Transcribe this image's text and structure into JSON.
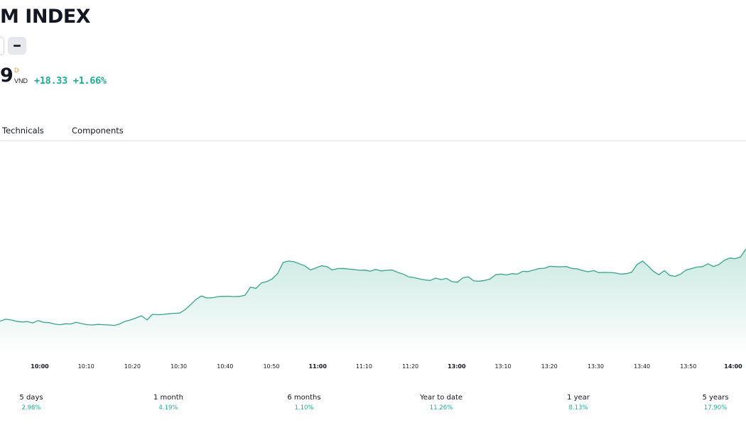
{
  "header": {
    "title": "M INDEX",
    "price": "9",
    "price_flag": "D",
    "currency": "VND",
    "change": "+18.33",
    "change_percent": "+1.66%"
  },
  "tabs": [
    {
      "label": "Technicals"
    },
    {
      "label": "Components"
    }
  ],
  "colors": {
    "accent": "#22ab94",
    "line": "#3aa28e",
    "fill_top": "#c9e9e1",
    "flag": "#f59b0c"
  },
  "chart_data": {
    "type": "area",
    "x_ticks": [
      "10:00",
      "10:10",
      "10:20",
      "10:30",
      "10:40",
      "10:50",
      "11:00",
      "11:10",
      "11:20",
      "13:00",
      "13:10",
      "13:20",
      "13:30",
      "13:40",
      "13:50",
      "14:00"
    ],
    "bold_ticks": [
      "10:00",
      "11:00",
      "13:00",
      "14:00"
    ],
    "y_axis_visible": false,
    "grid": false,
    "note": "y values in normalized index units (y-axis not visible)",
    "values": [
      51.0,
      52.5,
      52.0,
      51.0,
      50.5,
      50.8,
      49.8,
      51.5,
      50.2,
      50.0,
      49.0,
      48.5,
      49.2,
      49.0,
      50.2,
      49.3,
      48.5,
      48.3,
      48.7,
      48.5,
      48.3,
      48.0,
      49.0,
      51.0,
      52.0,
      53.5,
      55.0,
      52.0,
      56.0,
      55.8,
      56.0,
      56.5,
      56.8,
      57.0,
      59.5,
      63.0,
      67.0,
      69.5,
      68.0,
      68.2,
      69.0,
      69.2,
      69.3,
      69.0,
      69.2,
      70.0,
      76.0,
      75.0,
      79.0,
      80.0,
      82.0,
      86.0,
      94.0,
      95.0,
      94.5,
      93.0,
      91.5,
      88.5,
      90.0,
      91.5,
      91.0,
      88.5,
      89.5,
      89.6,
      89.2,
      88.8,
      88.3,
      88.4,
      87.6,
      88.9,
      87.8,
      88.3,
      88.5,
      86.8,
      85.5,
      83.5,
      83.0,
      82.0,
      81.2,
      80.8,
      82.5,
      81.5,
      82.3,
      80.0,
      79.5,
      82.8,
      83.5,
      80.5,
      80.3,
      80.8,
      81.8,
      85.0,
      85.5,
      84.9,
      85.8,
      85.5,
      87.5,
      87.3,
      88.5,
      89.5,
      89.8,
      91.2,
      90.9,
      90.8,
      91.0,
      89.6,
      89.3,
      88.0,
      87.2,
      88.0,
      86.5,
      86.7,
      86.6,
      86.3,
      85.5,
      85.8,
      86.9,
      92.5,
      95.0,
      91.5,
      87.5,
      85.0,
      88.0,
      84.5,
      83.8,
      85.5,
      88.5,
      89.5,
      90.6,
      90.9,
      93.0,
      91.0,
      92.4,
      95.5,
      97.2,
      96.8,
      98.0,
      104.0
    ]
  },
  "performance": [
    {
      "label": "5 days",
      "value": "2.98%"
    },
    {
      "label": "1 month",
      "value": "4.19%"
    },
    {
      "label": "6 months",
      "value": "1.10%"
    },
    {
      "label": "Year to date",
      "value": "11.26%"
    },
    {
      "label": "1 year",
      "value": "8.13%"
    },
    {
      "label": "5 years",
      "value": "17.90%"
    }
  ]
}
